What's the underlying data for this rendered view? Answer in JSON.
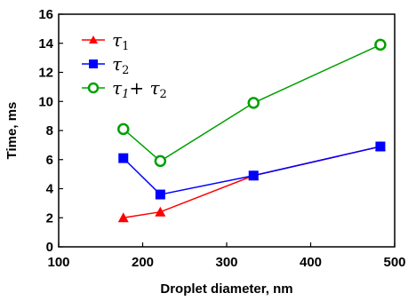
{
  "chart_data": {
    "type": "line",
    "xlabel": "Droplet diameter, nm",
    "ylabel": "Time, ms",
    "xlim": [
      100,
      500
    ],
    "ylim": [
      0,
      16
    ],
    "xticks": [
      "100",
      "200",
      "300",
      "400",
      "500"
    ],
    "yticks": [
      "0",
      "2",
      "4",
      "6",
      "8",
      "10",
      "12",
      "14",
      "16"
    ],
    "grid": false,
    "legend_position": "top-left",
    "series": [
      {
        "name": "τ1",
        "legend_main": "τ",
        "legend_sub": "1",
        "color": "#ff0000",
        "marker": "triangle",
        "x": [
          177,
          221,
          332,
          483
        ],
        "y": [
          2.0,
          2.4,
          4.9,
          6.9
        ]
      },
      {
        "name": "τ2",
        "legend_main": "τ",
        "legend_sub": "2",
        "color": "#0000ff",
        "marker": "square",
        "x": [
          177,
          221,
          332,
          483
        ],
        "y": [
          6.1,
          3.6,
          4.9,
          6.9
        ]
      },
      {
        "name": "τ1+ τ2",
        "legend_main": "τ",
        "legend_sub": "1",
        "legend_plus": "+ τ",
        "legend_sub2": "2",
        "color": "#00a000",
        "marker": "circle",
        "x": [
          177,
          221,
          332,
          483
        ],
        "y": [
          8.1,
          5.9,
          9.9,
          13.9
        ]
      }
    ]
  }
}
